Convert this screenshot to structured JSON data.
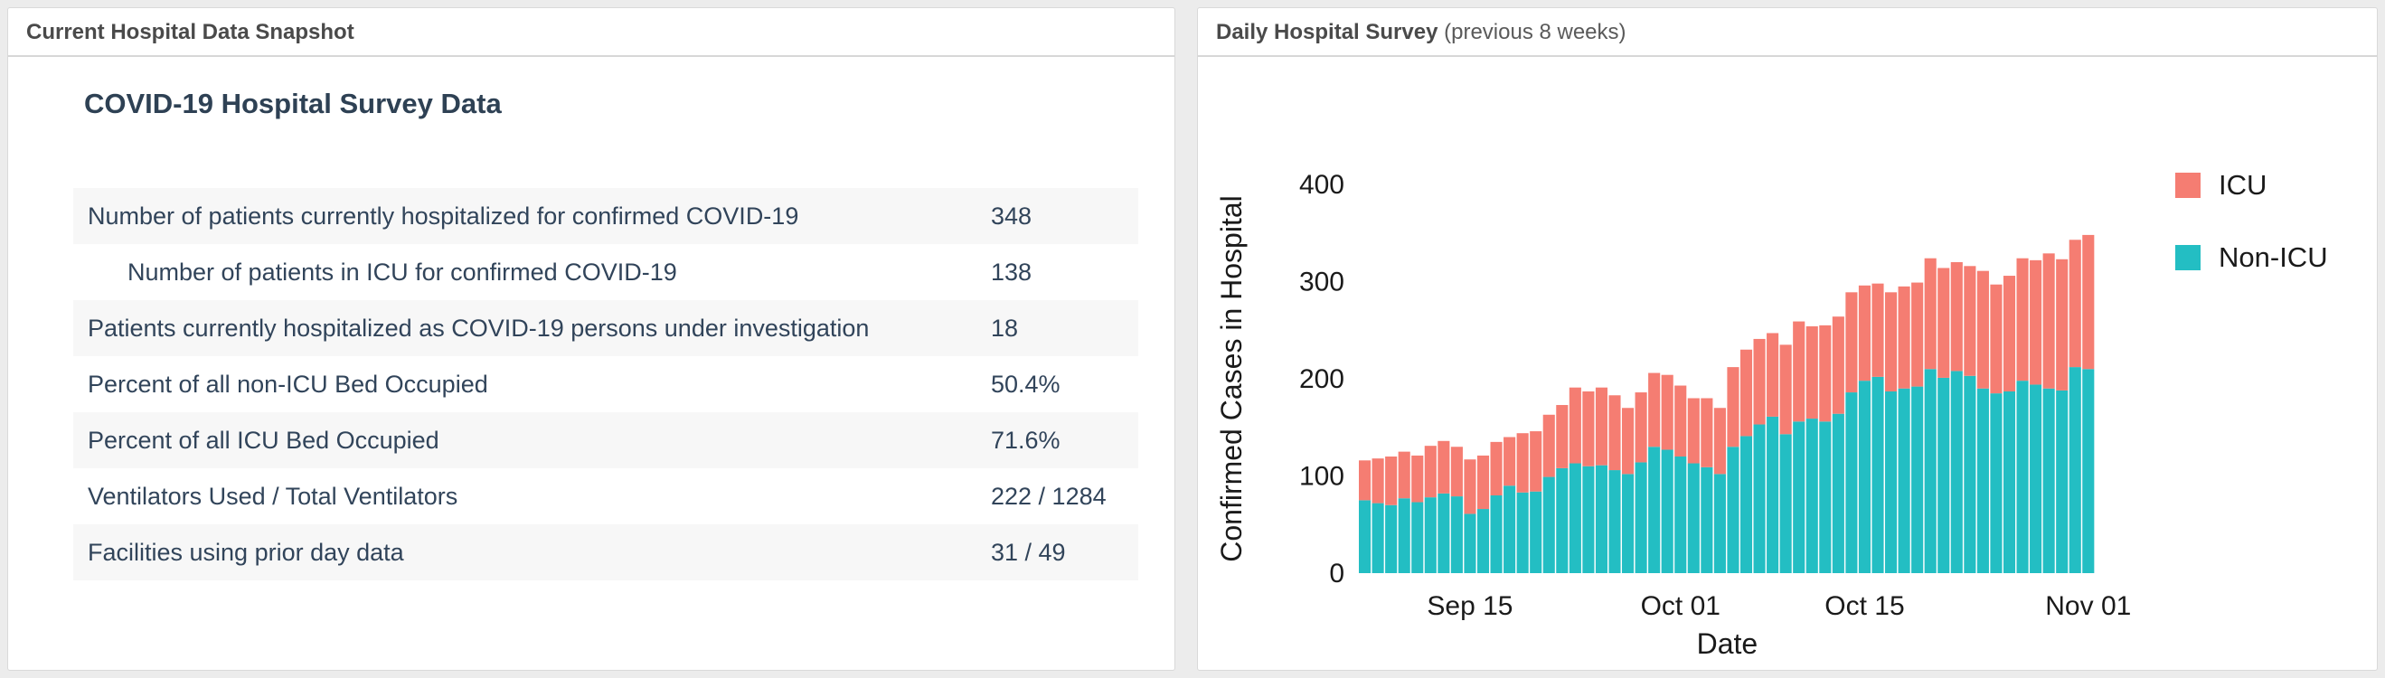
{
  "page": {
    "background": "#ececec"
  },
  "left_panel": {
    "header": "Current Hospital Data Snapshot",
    "table_title": "COVID-19 Hospital Survey Data",
    "rows": [
      {
        "label": "Number of patients currently hospitalized for confirmed COVID-19",
        "value": "348",
        "indent": false
      },
      {
        "label": "Number of patients in ICU for confirmed COVID-19",
        "value": "138",
        "indent": true
      },
      {
        "label": "Patients currently hospitalized as COVID-19 persons under investigation",
        "value": "18",
        "indent": false
      },
      {
        "label": "Percent of all non-ICU Bed Occupied",
        "value": "50.4%",
        "indent": false
      },
      {
        "label": "Percent of all ICU Bed Occupied",
        "value": "71.6%",
        "indent": false
      },
      {
        "label": "Ventilators Used / Total Ventilators",
        "value": "222 / 1284",
        "indent": false
      },
      {
        "label": "Facilities using prior day data",
        "value": "31 / 49",
        "indent": false
      }
    ]
  },
  "right_panel": {
    "header_bold": "Daily Hospital Survey",
    "header_note": " (previous 8 weeks)"
  },
  "colors": {
    "icu": "#f57d72",
    "non_icu": "#23bec3",
    "axis_text": "#1a1a1a"
  },
  "chart_data": {
    "type": "bar",
    "stacked": true,
    "title": "",
    "xlabel": "Date",
    "ylabel": "Confirmed Cases in Hospital",
    "ylim": [
      0,
      400
    ],
    "yticks": [
      0,
      100,
      200,
      300,
      400
    ],
    "xticks": [
      "Sep 15",
      "Oct 01",
      "Oct 15",
      "Nov 01"
    ],
    "grid": false,
    "legend_position": "right",
    "legend": [
      {
        "name": "ICU",
        "color": "#f57d72"
      },
      {
        "name": "Non-ICU",
        "color": "#23bec3"
      }
    ],
    "categories": [
      "Sep 07",
      "Sep 08",
      "Sep 09",
      "Sep 10",
      "Sep 11",
      "Sep 12",
      "Sep 13",
      "Sep 14",
      "Sep 15",
      "Sep 16",
      "Sep 17",
      "Sep 18",
      "Sep 19",
      "Sep 20",
      "Sep 21",
      "Sep 22",
      "Sep 23",
      "Sep 24",
      "Sep 25",
      "Sep 26",
      "Sep 27",
      "Sep 28",
      "Sep 29",
      "Sep 30",
      "Oct 01",
      "Oct 02",
      "Oct 03",
      "Oct 04",
      "Oct 05",
      "Oct 06",
      "Oct 07",
      "Oct 08",
      "Oct 09",
      "Oct 10",
      "Oct 11",
      "Oct 12",
      "Oct 13",
      "Oct 14",
      "Oct 15",
      "Oct 16",
      "Oct 17",
      "Oct 18",
      "Oct 19",
      "Oct 20",
      "Oct 21",
      "Oct 22",
      "Oct 23",
      "Oct 24",
      "Oct 25",
      "Oct 26",
      "Oct 27",
      "Oct 28",
      "Oct 29",
      "Oct 30",
      "Oct 31",
      "Nov 01"
    ],
    "series": [
      {
        "name": "Non-ICU",
        "color": "#23bec3",
        "values": [
          75,
          72,
          70,
          77,
          73,
          78,
          82,
          79,
          61,
          66,
          80,
          90,
          83,
          84,
          99,
          108,
          113,
          110,
          111,
          106,
          102,
          114,
          130,
          127,
          120,
          113,
          109,
          102,
          130,
          141,
          153,
          161,
          143,
          156,
          159,
          156,
          164,
          186,
          198,
          202,
          187,
          190,
          192,
          210,
          201,
          208,
          203,
          190,
          185,
          187,
          198,
          194,
          190,
          188,
          212,
          210
        ]
      },
      {
        "name": "ICU",
        "color": "#f57d72",
        "values": [
          41,
          46,
          50,
          48,
          48,
          53,
          54,
          51,
          56,
          55,
          55,
          50,
          61,
          62,
          64,
          65,
          78,
          77,
          80,
          77,
          68,
          72,
          76,
          77,
          73,
          67,
          71,
          68,
          82,
          89,
          88,
          86,
          92,
          103,
          95,
          99,
          100,
          103,
          98,
          96,
          102,
          105,
          107,
          114,
          113,
          112,
          113,
          121,
          112,
          119,
          126,
          128,
          139,
          135,
          131,
          138
        ]
      }
    ]
  }
}
